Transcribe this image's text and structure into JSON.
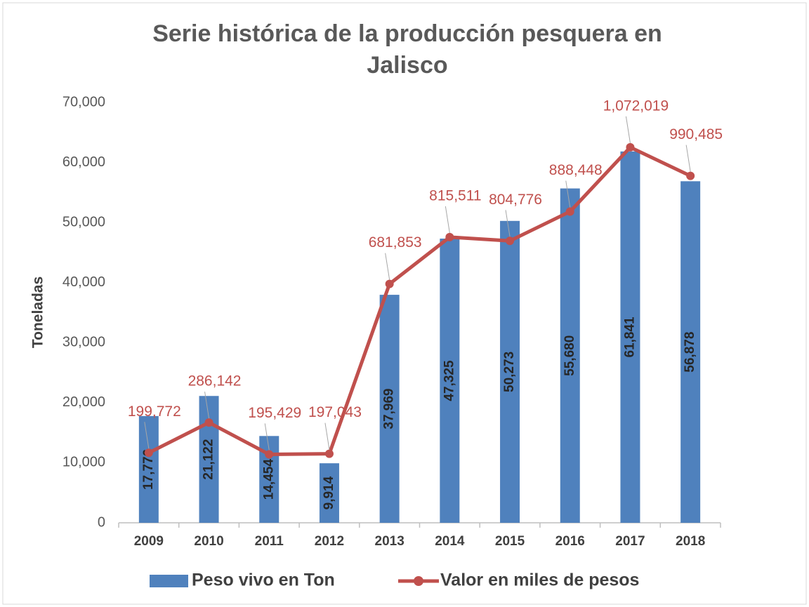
{
  "chart_data": {
    "type": "bar_line",
    "title": "Serie histórica de la producción pesquera en Jalisco",
    "y_label": "Toneladas",
    "categories": [
      "2009",
      "2010",
      "2011",
      "2012",
      "2013",
      "2014",
      "2015",
      "2016",
      "2017",
      "2018"
    ],
    "series": [
      {
        "name": "Peso vivo en Ton",
        "type": "bar",
        "color": "#4f81bd",
        "values": [
          17776,
          21122,
          14454,
          9914,
          37969,
          47325,
          50273,
          55680,
          61841,
          56878
        ],
        "value_labels": [
          "17,776",
          "21,122",
          "14,454",
          "9,914",
          "37,969",
          "47,325",
          "50,273",
          "55,680",
          "61,841",
          "56,878"
        ]
      },
      {
        "name": "Valor en miles de pesos",
        "type": "line",
        "axis": "y2",
        "color": "#c0504d",
        "values": [
          199772,
          286142,
          195429,
          197043,
          681853,
          815511,
          804776,
          888448,
          1072019,
          990485
        ],
        "value_labels": [
          "199,772",
          "286,142",
          "195,429",
          "197,043",
          "681,853",
          "815,511",
          "804,776",
          "888,448",
          "1,072,019",
          "990,485"
        ]
      }
    ],
    "ylim": [
      0,
      70000
    ],
    "yticks": [
      0,
      {
        "value": 10000,
        "label": "10,000"
      },
      {
        "value": 20000,
        "label": "20,000"
      },
      {
        "value": 30000,
        "label": "30,000"
      },
      {
        "value": 40000,
        "label": "40,000"
      },
      {
        "value": 50000,
        "label": "50,000"
      },
      {
        "value": 60000,
        "label": "60,000"
      },
      {
        "value": 70000,
        "label": "70,000"
      }
    ],
    "y2lim": [
      0,
      1200000
    ],
    "grid": false,
    "legend": "bottom"
  }
}
